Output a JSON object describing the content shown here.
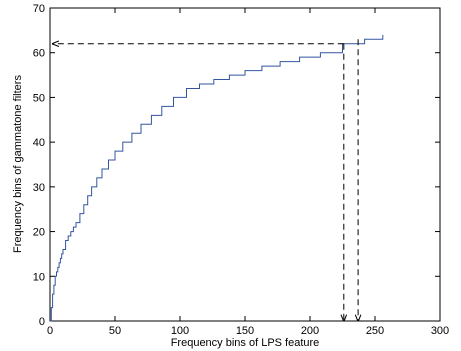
{
  "chart_data": {
    "type": "line",
    "title": "",
    "xlabel": "Frequency bins of LPS feature",
    "ylabel": "Frequency bins of gammatone filters",
    "xlim": [
      0,
      300
    ],
    "ylim": [
      0,
      70
    ],
    "x_ticks": [
      "0",
      "50",
      "100",
      "150",
      "200",
      "250",
      "300"
    ],
    "y_ticks": [
      "0",
      "10",
      "20",
      "30",
      "40",
      "50",
      "60",
      "70"
    ],
    "grid": false,
    "series": [
      {
        "color": "#3355a0",
        "style": "steps",
        "x": [
          0,
          1,
          2,
          3,
          4,
          5,
          6,
          7,
          8,
          9,
          10,
          12,
          14,
          16,
          18,
          20,
          23,
          26,
          29,
          32,
          36,
          40,
          45,
          50,
          56,
          63,
          70,
          78,
          86,
          95,
          105,
          115,
          126,
          138,
          150,
          163,
          177,
          192,
          208,
          225,
          242,
          256
        ],
        "y": [
          0,
          3,
          6,
          8,
          10,
          11,
          12,
          13,
          14,
          15,
          16,
          18,
          19,
          20,
          21,
          22,
          24,
          26,
          28,
          30,
          32,
          34,
          36,
          38,
          40,
          42,
          44,
          46,
          48,
          50,
          52,
          53,
          54,
          55,
          56,
          57,
          58,
          59,
          60,
          62,
          63,
          64
        ]
      }
    ],
    "annotations": [
      {
        "type": "arrow",
        "color": "#000000",
        "style": "dashed",
        "from": [
          226,
          62
        ],
        "to": [
          2,
          62
        ]
      },
      {
        "type": "arrow",
        "color": "#000000",
        "style": "dashed",
        "from": [
          226,
          62
        ],
        "to": [
          226,
          0
        ]
      },
      {
        "type": "arrow",
        "color": "#000000",
        "style": "dashed",
        "from": [
          237,
          63
        ],
        "to": [
          237,
          0
        ]
      }
    ]
  }
}
